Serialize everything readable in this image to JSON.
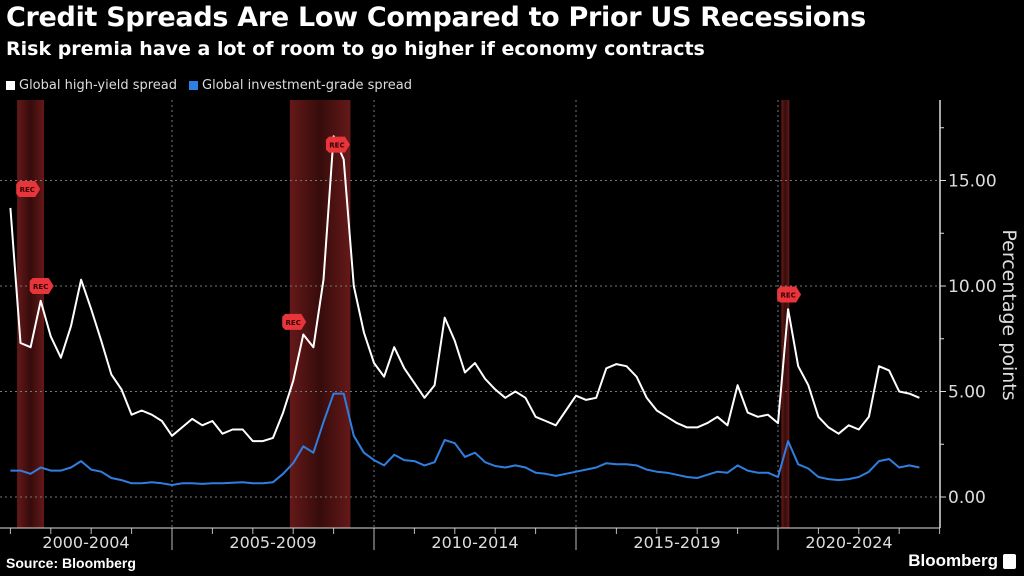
{
  "header": {
    "title": "Credit Spreads Are Low Compared to Prior US Recessions",
    "subtitle": "Risk premia have a lot of room to go higher if economy contracts"
  },
  "footer": {
    "source": "Source: Bloomberg",
    "logo": "Bloomberg"
  },
  "chart_data": {
    "type": "line",
    "title": "Credit Spreads Are Low Compared to Prior US Recessions",
    "subtitle": "Risk premia have a lot of room to go higher if economy contracts",
    "ylabel": "Percentage points",
    "xlabel": "",
    "ylim": [
      -1.5,
      18.8
    ],
    "yticks": [
      0,
      5,
      10,
      15
    ],
    "ytick_labels": [
      "0.00",
      "5.00",
      "10.00",
      "15.00"
    ],
    "y_axis_side": "right",
    "xperiods": [
      {
        "label": "2000-2004",
        "start": 2000,
        "end": 2005
      },
      {
        "label": "2005-2009",
        "start": 2005,
        "end": 2010
      },
      {
        "label": "2010-2014",
        "start": 2010,
        "end": 2015
      },
      {
        "label": "2015-2019",
        "start": 2015,
        "end": 2020
      },
      {
        "label": "2020-2024",
        "start": 2020,
        "end": 2025
      }
    ],
    "grid": true,
    "legend_placement": "top-left",
    "frequency": "quarterly",
    "x_start": "2001Q1",
    "x_end": "2023Q3",
    "series": [
      {
        "name": "Global high-yield spread",
        "color": "#ffffff",
        "values": [
          13.7,
          7.3,
          7.1,
          9.3,
          7.6,
          6.6,
          8.1,
          10.3,
          8.9,
          7.4,
          5.8,
          5.1,
          3.9,
          4.1,
          3.9,
          3.6,
          2.9,
          3.3,
          3.7,
          3.4,
          3.6,
          3.0,
          3.2,
          3.2,
          2.65,
          2.65,
          2.8,
          4.0,
          5.5,
          7.7,
          7.1,
          10.3,
          17.1,
          16.0,
          10.0,
          7.8,
          6.35,
          5.7,
          7.1,
          6.1,
          5.4,
          4.7,
          5.3,
          8.5,
          7.4,
          5.9,
          6.35,
          5.6,
          5.1,
          4.7,
          5.0,
          4.7,
          3.8,
          3.6,
          3.4,
          4.1,
          4.8,
          4.6,
          4.7,
          6.1,
          6.3,
          6.2,
          5.7,
          4.7,
          4.1,
          3.8,
          3.5,
          3.3,
          3.3,
          3.5,
          3.8,
          3.4,
          5.3,
          4.0,
          3.8,
          3.9,
          3.5,
          8.9,
          6.2,
          5.3,
          3.8,
          3.3,
          3.0,
          3.4,
          3.2,
          3.8,
          6.2,
          6.0,
          5.0,
          4.9,
          4.7
        ]
      },
      {
        "name": "Global investment-grade spread",
        "color": "#2f7fe0",
        "values": [
          1.25,
          1.25,
          1.1,
          1.4,
          1.25,
          1.25,
          1.4,
          1.7,
          1.3,
          1.2,
          0.9,
          0.8,
          0.65,
          0.65,
          0.7,
          0.65,
          0.57,
          0.65,
          0.65,
          0.62,
          0.65,
          0.65,
          0.68,
          0.7,
          0.65,
          0.65,
          0.7,
          1.1,
          1.6,
          2.4,
          2.1,
          3.55,
          4.9,
          4.9,
          2.9,
          2.1,
          1.75,
          1.5,
          2.0,
          1.75,
          1.7,
          1.5,
          1.65,
          2.7,
          2.55,
          1.9,
          2.1,
          1.65,
          1.47,
          1.4,
          1.5,
          1.4,
          1.15,
          1.1,
          1.0,
          1.1,
          1.2,
          1.3,
          1.4,
          1.6,
          1.55,
          1.55,
          1.5,
          1.3,
          1.2,
          1.15,
          1.05,
          0.95,
          0.9,
          1.05,
          1.2,
          1.15,
          1.5,
          1.25,
          1.15,
          1.15,
          0.95,
          2.65,
          1.55,
          1.35,
          0.95,
          0.85,
          0.8,
          0.85,
          0.95,
          1.2,
          1.7,
          1.8,
          1.4,
          1.5,
          1.4
        ]
      }
    ],
    "recessions": [
      {
        "start": "2001-03",
        "end": "2001-11"
      },
      {
        "start": "2007-12",
        "end": "2009-06"
      },
      {
        "start": "2020-02",
        "end": "2020-04"
      }
    ],
    "recession_color": "#6a1a1a",
    "annotations": [
      {
        "text": "REC",
        "date": "2001-06",
        "value": 14.6
      },
      {
        "text": "REC",
        "date": "2001-10",
        "value": 10.0
      },
      {
        "text": "REC",
        "date": "2008-01",
        "value": 8.3
      },
      {
        "text": "REC",
        "date": "2009-02",
        "value": 16.7
      },
      {
        "text": "REC",
        "date": "2020-04",
        "value": 9.6
      }
    ],
    "annotation_color": "#e8353b"
  }
}
